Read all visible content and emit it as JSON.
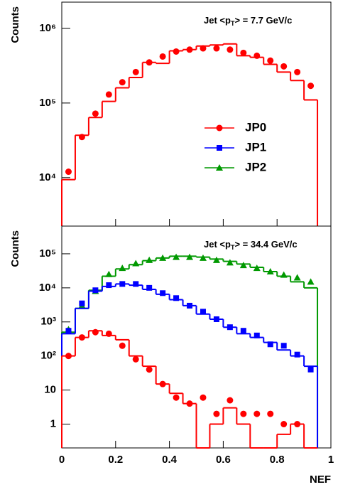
{
  "chart_data": [
    {
      "type": "histogram",
      "ylabel": "Counts",
      "annotation": [
        "Jet <p",
        "T",
        "> = 7.7 GeV/c"
      ],
      "log_y": true,
      "xlim": [
        0,
        1
      ],
      "xticks": [
        0,
        0.2,
        0.4,
        0.6,
        0.8,
        1
      ],
      "ylim": [
        2240,
        2250000
      ],
      "yticks": [
        {
          "value": 10000,
          "label": "10⁴"
        },
        {
          "value": 100000,
          "label": "10⁵"
        },
        {
          "value": 1000000,
          "label": "10⁶"
        }
      ],
      "legend": "center-right",
      "bins": [
        0,
        0.05,
        0.1,
        0.15,
        0.2,
        0.25,
        0.3,
        0.35,
        0.4,
        0.45,
        0.5,
        0.55,
        0.6,
        0.65,
        0.7,
        0.75,
        0.8,
        0.85,
        0.9,
        0.95
      ],
      "series": [
        {
          "name": "JP0",
          "color": "#ff0000",
          "marker": "circle",
          "values": [
            9400,
            37000,
            64000,
            105000,
            160000,
            220000,
            350000,
            340000,
            500000,
            520000,
            580000,
            600000,
            620000,
            430000,
            410000,
            330000,
            260000,
            200000,
            110000
          ],
          "points": [
            12000,
            35000,
            72000,
            130000,
            190000,
            260000,
            350000,
            420000,
            490000,
            520000,
            540000,
            540000,
            520000,
            470000,
            430000,
            370000,
            310000,
            260000,
            170000
          ]
        },
        {
          "name": "JP1",
          "color": "#0000ff",
          "marker": "square"
        },
        {
          "name": "JP2",
          "color": "#009900",
          "marker": "triangle"
        }
      ]
    },
    {
      "type": "histogram",
      "ylabel": "Counts",
      "xlabel": "NEF",
      "annotation": [
        "Jet <p",
        "T",
        "> = 34.4 GeV/c"
      ],
      "log_y": true,
      "xlim": [
        0,
        1
      ],
      "xticks": [
        0,
        0.2,
        0.4,
        0.6,
        0.8,
        1
      ],
      "ylim": [
        0.2,
        650000
      ],
      "yticks": [
        1,
        10,
        {
          "value": 100,
          "label": "10²"
        },
        {
          "value": 1000,
          "label": "10³"
        },
        {
          "value": 10000,
          "label": "10⁴"
        },
        {
          "value": 100000,
          "label": "10⁵"
        }
      ],
      "bins": [
        0,
        0.05,
        0.1,
        0.15,
        0.2,
        0.25,
        0.3,
        0.35,
        0.4,
        0.45,
        0.5,
        0.55,
        0.6,
        0.65,
        0.7,
        0.75,
        0.8,
        0.85,
        0.9,
        0.95
      ],
      "series": [
        {
          "color": "#009900",
          "marker": "triangle",
          "values": [
            500,
            2500,
            8500,
            22000,
            36000,
            48000,
            63000,
            75000,
            85000,
            85000,
            80000,
            70000,
            60000,
            50000,
            40000,
            30000,
            22000,
            15000,
            10000
          ],
          "points": [
            600,
            3000,
            8000,
            25000,
            38000,
            52000,
            65000,
            75000,
            80000,
            80000,
            75000,
            65000,
            55000,
            46000,
            38000,
            30000,
            24000,
            20000,
            15000
          ]
        },
        {
          "color": "#0000ff",
          "marker": "square",
          "values": [
            450,
            2500,
            8000,
            11000,
            13000,
            12000,
            9000,
            6500,
            4500,
            3000,
            1700,
            1200,
            700,
            450,
            350,
            250,
            150,
            100,
            50
          ],
          "points": [
            550,
            3500,
            8500,
            12000,
            13000,
            13000,
            10000,
            7000,
            5000,
            3000,
            2000,
            1200,
            700,
            550,
            400,
            220,
            200,
            110,
            40
          ]
        },
        {
          "color": "#ff0000",
          "marker": "circle",
          "values": [
            100,
            350,
            550,
            400,
            300,
            100,
            50,
            15,
            8,
            4,
            0,
            1,
            3,
            1,
            0,
            0,
            0.5,
            1,
            0
          ],
          "points": [
            100,
            350,
            500,
            450,
            200,
            80,
            40,
            15,
            6,
            4,
            6,
            2,
            5,
            2,
            2,
            2,
            1,
            1,
            null
          ]
        }
      ]
    }
  ]
}
